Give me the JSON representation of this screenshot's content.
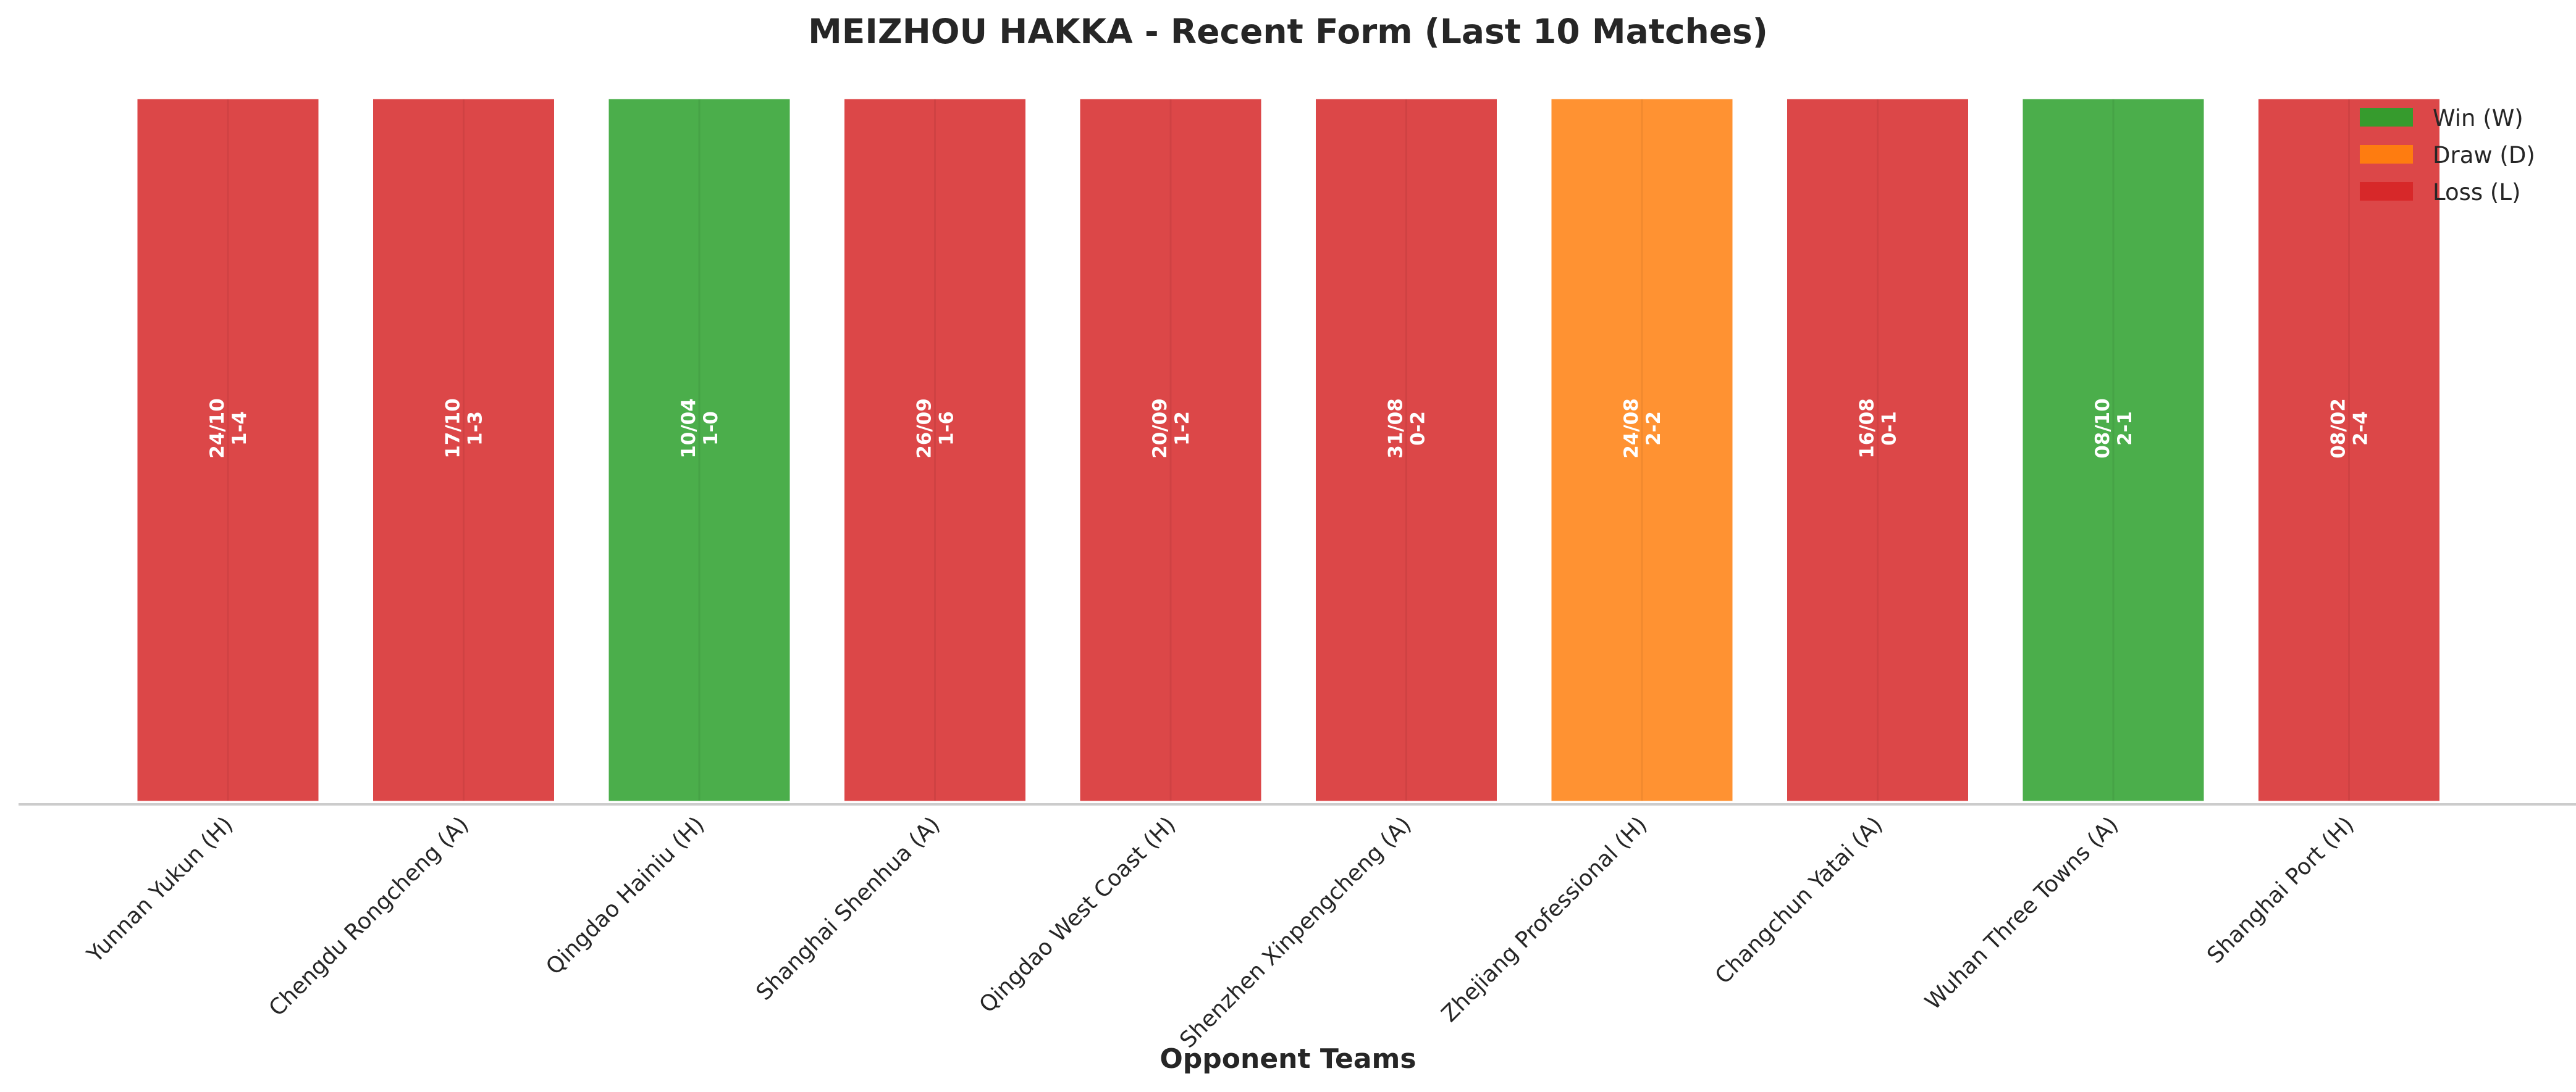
{
  "chart_data": {
    "type": "bar",
    "title": "MEIZHOU HAKKA - Recent Form (Last 10 Matches)",
    "xlabel": "Opponent Teams",
    "ylabel": "",
    "ylim": [
      0,
      1
    ],
    "grid": false,
    "legend": {
      "placement": "top-right",
      "entries": [
        {
          "key": "W",
          "label": "Win (W)",
          "color": "#2ca02c"
        },
        {
          "key": "D",
          "label": "Draw (D)",
          "color": "#ff7f0e"
        },
        {
          "key": "L",
          "label": "Loss (L)",
          "color": "#d62728"
        }
      ]
    },
    "categories": [
      "Yunnan Yukun (H)",
      "Chengdu Rongcheng (A)",
      "Qingdao Hainiu (H)",
      "Shanghai Shenhua (A)",
      "Qingdao West Coast (H)",
      "Shenzhen Xinpengcheng (A)",
      "Zhejiang Professional (H)",
      "Changchun Yatai (A)",
      "Wuhan Three Towns (A)",
      "Shanghai Port (H)"
    ],
    "values": [
      1,
      1,
      1,
      1,
      1,
      1,
      1,
      1,
      1,
      1
    ],
    "results": [
      "L",
      "L",
      "W",
      "L",
      "L",
      "L",
      "D",
      "L",
      "W",
      "L"
    ],
    "dates": [
      "24/10",
      "17/10",
      "10/04",
      "26/09",
      "20/09",
      "31/08",
      "24/08",
      "16/08",
      "08/10",
      "08/02"
    ],
    "scores": [
      "1-4",
      "1-3",
      "1-0",
      "1-6",
      "1-2",
      "0-2",
      "2-2",
      "0-1",
      "2-1",
      "2-4"
    ]
  }
}
